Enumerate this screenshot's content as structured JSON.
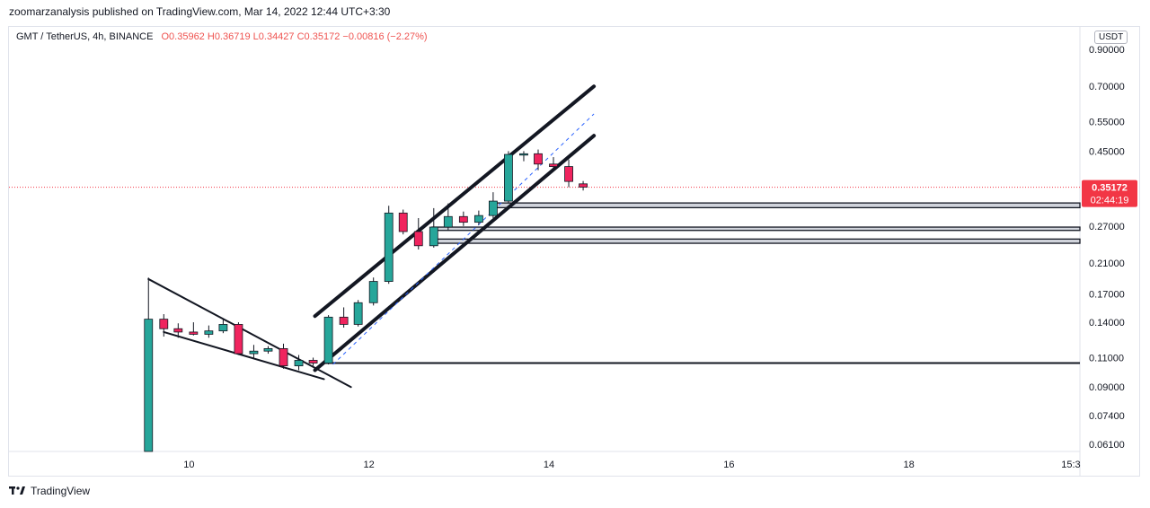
{
  "header": {
    "published_by": "zoomarzanalysis published on TradingView.com, Mar 14, 2022 12:44 UTC+3:30"
  },
  "legend": {
    "symbol": "GMT / TetherUS, 4h, BINANCE",
    "open": "O0.35962",
    "high": "H0.36719",
    "low": "L0.34427",
    "close": "C0.35172",
    "change": "−0.00816 (−2.27%)"
  },
  "unit_button": "USDT",
  "last_price": {
    "value": "0.35172",
    "countdown": "02:44:19",
    "color": "#f23645"
  },
  "footer": {
    "brand": "TradingView"
  },
  "colors": {
    "up": "#26a69a",
    "down": "#ef5350",
    "accent": "#2962ff"
  },
  "chart_data": {
    "type": "candlestick",
    "y_scale": "log",
    "y_range": [
      0.058,
      1.05
    ],
    "y_ticks": [
      "0.90000",
      "0.70000",
      "0.55000",
      "0.45000",
      "0.27000",
      "0.21000",
      "0.17000",
      "0.14000",
      "0.11000",
      "0.09000",
      "0.07400",
      "0.06100"
    ],
    "y_tick_values": [
      0.9,
      0.7,
      0.55,
      0.45,
      0.27,
      0.21,
      0.17,
      0.14,
      0.11,
      0.09,
      0.074,
      0.061
    ],
    "x_ticks": [
      "10",
      "12",
      "14",
      "16",
      "18",
      "15:3"
    ],
    "x_tick_values": [
      10,
      12,
      14,
      16,
      18,
      19.8
    ],
    "x_range": [
      8.0,
      19.9
    ],
    "candles": [
      {
        "t": 9.55,
        "o": 0.055,
        "h": 0.19,
        "l": 0.055,
        "c": 0.143
      },
      {
        "t": 9.72,
        "o": 0.143,
        "h": 0.148,
        "l": 0.127,
        "c": 0.134
      },
      {
        "t": 9.88,
        "o": 0.134,
        "h": 0.139,
        "l": 0.126,
        "c": 0.131
      },
      {
        "t": 10.05,
        "o": 0.131,
        "h": 0.14,
        "l": 0.128,
        "c": 0.129
      },
      {
        "t": 10.22,
        "o": 0.129,
        "h": 0.137,
        "l": 0.126,
        "c": 0.132
      },
      {
        "t": 10.38,
        "o": 0.132,
        "h": 0.143,
        "l": 0.13,
        "c": 0.138
      },
      {
        "t": 10.55,
        "o": 0.138,
        "h": 0.14,
        "l": 0.112,
        "c": 0.113
      },
      {
        "t": 10.72,
        "o": 0.113,
        "h": 0.12,
        "l": 0.11,
        "c": 0.115
      },
      {
        "t": 10.88,
        "o": 0.115,
        "h": 0.119,
        "l": 0.113,
        "c": 0.117
      },
      {
        "t": 11.05,
        "o": 0.117,
        "h": 0.121,
        "l": 0.102,
        "c": 0.104
      },
      {
        "t": 11.22,
        "o": 0.104,
        "h": 0.112,
        "l": 0.101,
        "c": 0.108
      },
      {
        "t": 11.38,
        "o": 0.108,
        "h": 0.11,
        "l": 0.104,
        "c": 0.106
      },
      {
        "t": 11.55,
        "o": 0.106,
        "h": 0.147,
        "l": 0.105,
        "c": 0.145
      },
      {
        "t": 11.72,
        "o": 0.145,
        "h": 0.155,
        "l": 0.135,
        "c": 0.138
      },
      {
        "t": 11.88,
        "o": 0.138,
        "h": 0.163,
        "l": 0.136,
        "c": 0.16
      },
      {
        "t": 12.05,
        "o": 0.16,
        "h": 0.19,
        "l": 0.157,
        "c": 0.185
      },
      {
        "t": 12.22,
        "o": 0.185,
        "h": 0.31,
        "l": 0.182,
        "c": 0.295
      },
      {
        "t": 12.38,
        "o": 0.295,
        "h": 0.302,
        "l": 0.255,
        "c": 0.26
      },
      {
        "t": 12.55,
        "o": 0.26,
        "h": 0.285,
        "l": 0.23,
        "c": 0.236
      },
      {
        "t": 12.72,
        "o": 0.236,
        "h": 0.305,
        "l": 0.233,
        "c": 0.268
      },
      {
        "t": 12.88,
        "o": 0.268,
        "h": 0.315,
        "l": 0.262,
        "c": 0.288
      },
      {
        "t": 13.05,
        "o": 0.288,
        "h": 0.298,
        "l": 0.27,
        "c": 0.277
      },
      {
        "t": 13.22,
        "o": 0.277,
        "h": 0.3,
        "l": 0.272,
        "c": 0.29
      },
      {
        "t": 13.38,
        "o": 0.29,
        "h": 0.34,
        "l": 0.285,
        "c": 0.32
      },
      {
        "t": 13.55,
        "o": 0.32,
        "h": 0.45,
        "l": 0.315,
        "c": 0.44
      },
      {
        "t": 13.72,
        "o": 0.44,
        "h": 0.45,
        "l": 0.42,
        "c": 0.442
      },
      {
        "t": 13.88,
        "o": 0.442,
        "h": 0.455,
        "l": 0.395,
        "c": 0.412
      },
      {
        "t": 14.05,
        "o": 0.412,
        "h": 0.432,
        "l": 0.398,
        "c": 0.405
      },
      {
        "t": 14.22,
        "o": 0.405,
        "h": 0.425,
        "l": 0.352,
        "c": 0.366
      },
      {
        "t": 14.38,
        "o": 0.36,
        "h": 0.367,
        "l": 0.344,
        "c": 0.352
      }
    ],
    "last_price_line": 0.35172,
    "support_zones": [
      {
        "from_t": 13.4,
        "low": 0.306,
        "high": 0.316
      },
      {
        "from_t": 12.7,
        "low": 0.262,
        "high": 0.268
      },
      {
        "from_t": 12.7,
        "low": 0.24,
        "high": 0.247
      }
    ],
    "horizontal_line": {
      "from_t": 11.5,
      "value": 0.106
    },
    "trendlines": [
      {
        "t1": 9.55,
        "v1": 0.188,
        "t2": 11.8,
        "v2": 0.09
      },
      {
        "t1": 9.72,
        "v1": 0.131,
        "t2": 11.5,
        "v2": 0.095
      },
      {
        "t1": 11.4,
        "v1": 0.146,
        "t2": 14.5,
        "v2": 0.7
      },
      {
        "t1": 11.4,
        "v1": 0.101,
        "t2": 14.5,
        "v2": 0.5
      }
    ],
    "dashed_midline": {
      "t1": 11.6,
      "v1": 0.105,
      "t2": 14.5,
      "v2": 0.58
    }
  }
}
